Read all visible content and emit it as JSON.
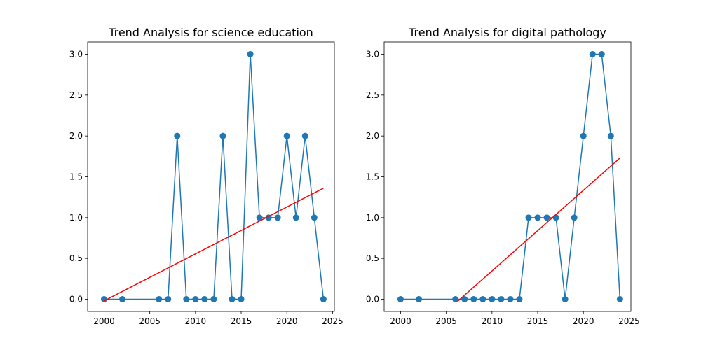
{
  "chart_data": [
    {
      "type": "line",
      "title": "Trend Analysis for science education",
      "xlabel": "",
      "ylabel": "",
      "xlim": [
        1998.2,
        2025.2
      ],
      "ylim": [
        -0.15,
        3.15
      ],
      "xticks": [
        2000,
        2005,
        2010,
        2015,
        2020,
        2025
      ],
      "yticks": [
        0.0,
        0.5,
        1.0,
        1.5,
        2.0,
        2.5,
        3.0
      ],
      "xtick_labels": [
        "2000",
        "2005",
        "2010",
        "2015",
        "2020",
        "2025"
      ],
      "ytick_labels": [
        "0.0",
        "0.5",
        "1.0",
        "1.5",
        "2.0",
        "2.5",
        "3.0"
      ],
      "grid": false,
      "series": [
        {
          "color": "#1f77b4",
          "marker": "circle",
          "x": [
            2000,
            2002,
            2006,
            2007,
            2008,
            2009,
            2010,
            2011,
            2012,
            2013,
            2014,
            2015,
            2016,
            2017,
            2018,
            2019,
            2020,
            2021,
            2022,
            2023,
            2024
          ],
          "y": [
            0,
            0,
            0,
            0,
            2,
            0,
            0,
            0,
            0,
            2,
            0,
            0,
            3,
            1,
            1,
            1,
            2,
            1,
            2,
            1,
            0
          ]
        }
      ],
      "trend": {
        "color": "#ff0000",
        "x": [
          2000,
          2024
        ],
        "y": [
          -0.02,
          1.36
        ]
      }
    },
    {
      "type": "line",
      "title": "Trend Analysis for digital pathology",
      "xlabel": "",
      "ylabel": "",
      "xlim": [
        1998.2,
        2025.2
      ],
      "ylim": [
        -0.15,
        3.15
      ],
      "xticks": [
        2000,
        2005,
        2010,
        2015,
        2020,
        2025
      ],
      "yticks": [
        0.0,
        0.5,
        1.0,
        1.5,
        2.0,
        2.5,
        3.0
      ],
      "xtick_labels": [
        "2000",
        "2005",
        "2010",
        "2015",
        "2020",
        "2025"
      ],
      "ytick_labels": [
        "0.0",
        "0.5",
        "1.0",
        "1.5",
        "2.0",
        "2.5",
        "3.0"
      ],
      "grid": false,
      "series": [
        {
          "color": "#1f77b4",
          "marker": "circle",
          "x": [
            2000,
            2002,
            2006,
            2007,
            2008,
            2009,
            2010,
            2011,
            2012,
            2013,
            2014,
            2015,
            2016,
            2017,
            2018,
            2019,
            2020,
            2021,
            2022,
            2023,
            2024
          ],
          "y": [
            0,
            0,
            0,
            0,
            0,
            0,
            0,
            0,
            0,
            0,
            1,
            1,
            1,
            1,
            0,
            1,
            2,
            3,
            3,
            2,
            0
          ]
        }
      ],
      "trend": {
        "color": "#ff0000",
        "x": [
          2006.3,
          2024
        ],
        "y": [
          -0.02,
          1.73
        ]
      }
    }
  ]
}
